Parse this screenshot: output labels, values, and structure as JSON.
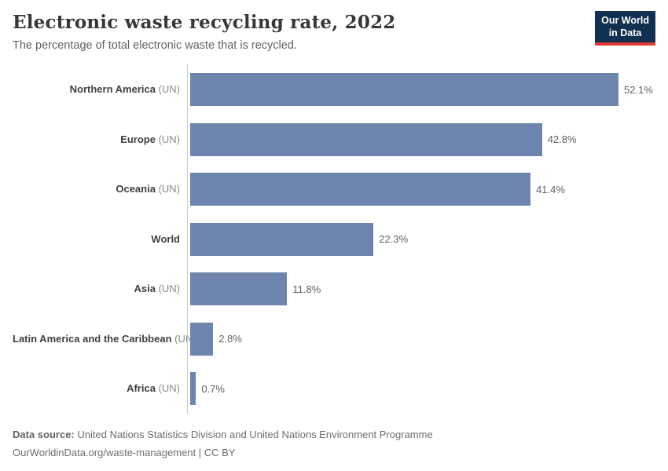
{
  "header": {
    "title": "Electronic waste recycling rate, 2022",
    "subtitle": "The percentage of total electronic waste that is recycled.",
    "logo": {
      "line1": "Our World",
      "line2": "in Data"
    }
  },
  "chart_data": {
    "type": "bar",
    "orientation": "horizontal",
    "title": "Electronic waste recycling rate, 2022",
    "unit": "%",
    "xlim": [
      0,
      55
    ],
    "grid": false,
    "legend": "none",
    "categories": [
      "Northern America (UN)",
      "Europe (UN)",
      "Oceania (UN)",
      "World",
      "Asia (UN)",
      "Latin America and the Caribbean (UN)",
      "Africa (UN)"
    ],
    "values": [
      52.1,
      42.8,
      41.4,
      22.3,
      11.8,
      2.8,
      0.7
    ],
    "rows": [
      {
        "name": "Northern America",
        "suffix": "(UN)",
        "value": 52.1,
        "value_label": "52.1%"
      },
      {
        "name": "Europe",
        "suffix": "(UN)",
        "value": 42.8,
        "value_label": "42.8%"
      },
      {
        "name": "Oceania",
        "suffix": "(UN)",
        "value": 41.4,
        "value_label": "41.4%"
      },
      {
        "name": "World",
        "suffix": "",
        "value": 22.3,
        "value_label": "22.3%"
      },
      {
        "name": "Asia",
        "suffix": "(UN)",
        "value": 11.8,
        "value_label": "11.8%"
      },
      {
        "name": "Latin America and the Caribbean",
        "suffix": "(UN)",
        "value": 2.8,
        "value_label": "2.8%"
      },
      {
        "name": "Africa",
        "suffix": "(UN)",
        "value": 0.7,
        "value_label": "0.7%"
      }
    ]
  },
  "footer": {
    "source_label": "Data source:",
    "source_text": "United Nations Statistics Division and United Nations Environment Programme",
    "attribution": "OurWorldinData.org/waste-management | CC BY"
  },
  "colors": {
    "bar": "#6d84ad",
    "axis": "#c9c9c9",
    "logo_navy": "#12304f",
    "logo_red": "#dc3b33"
  }
}
